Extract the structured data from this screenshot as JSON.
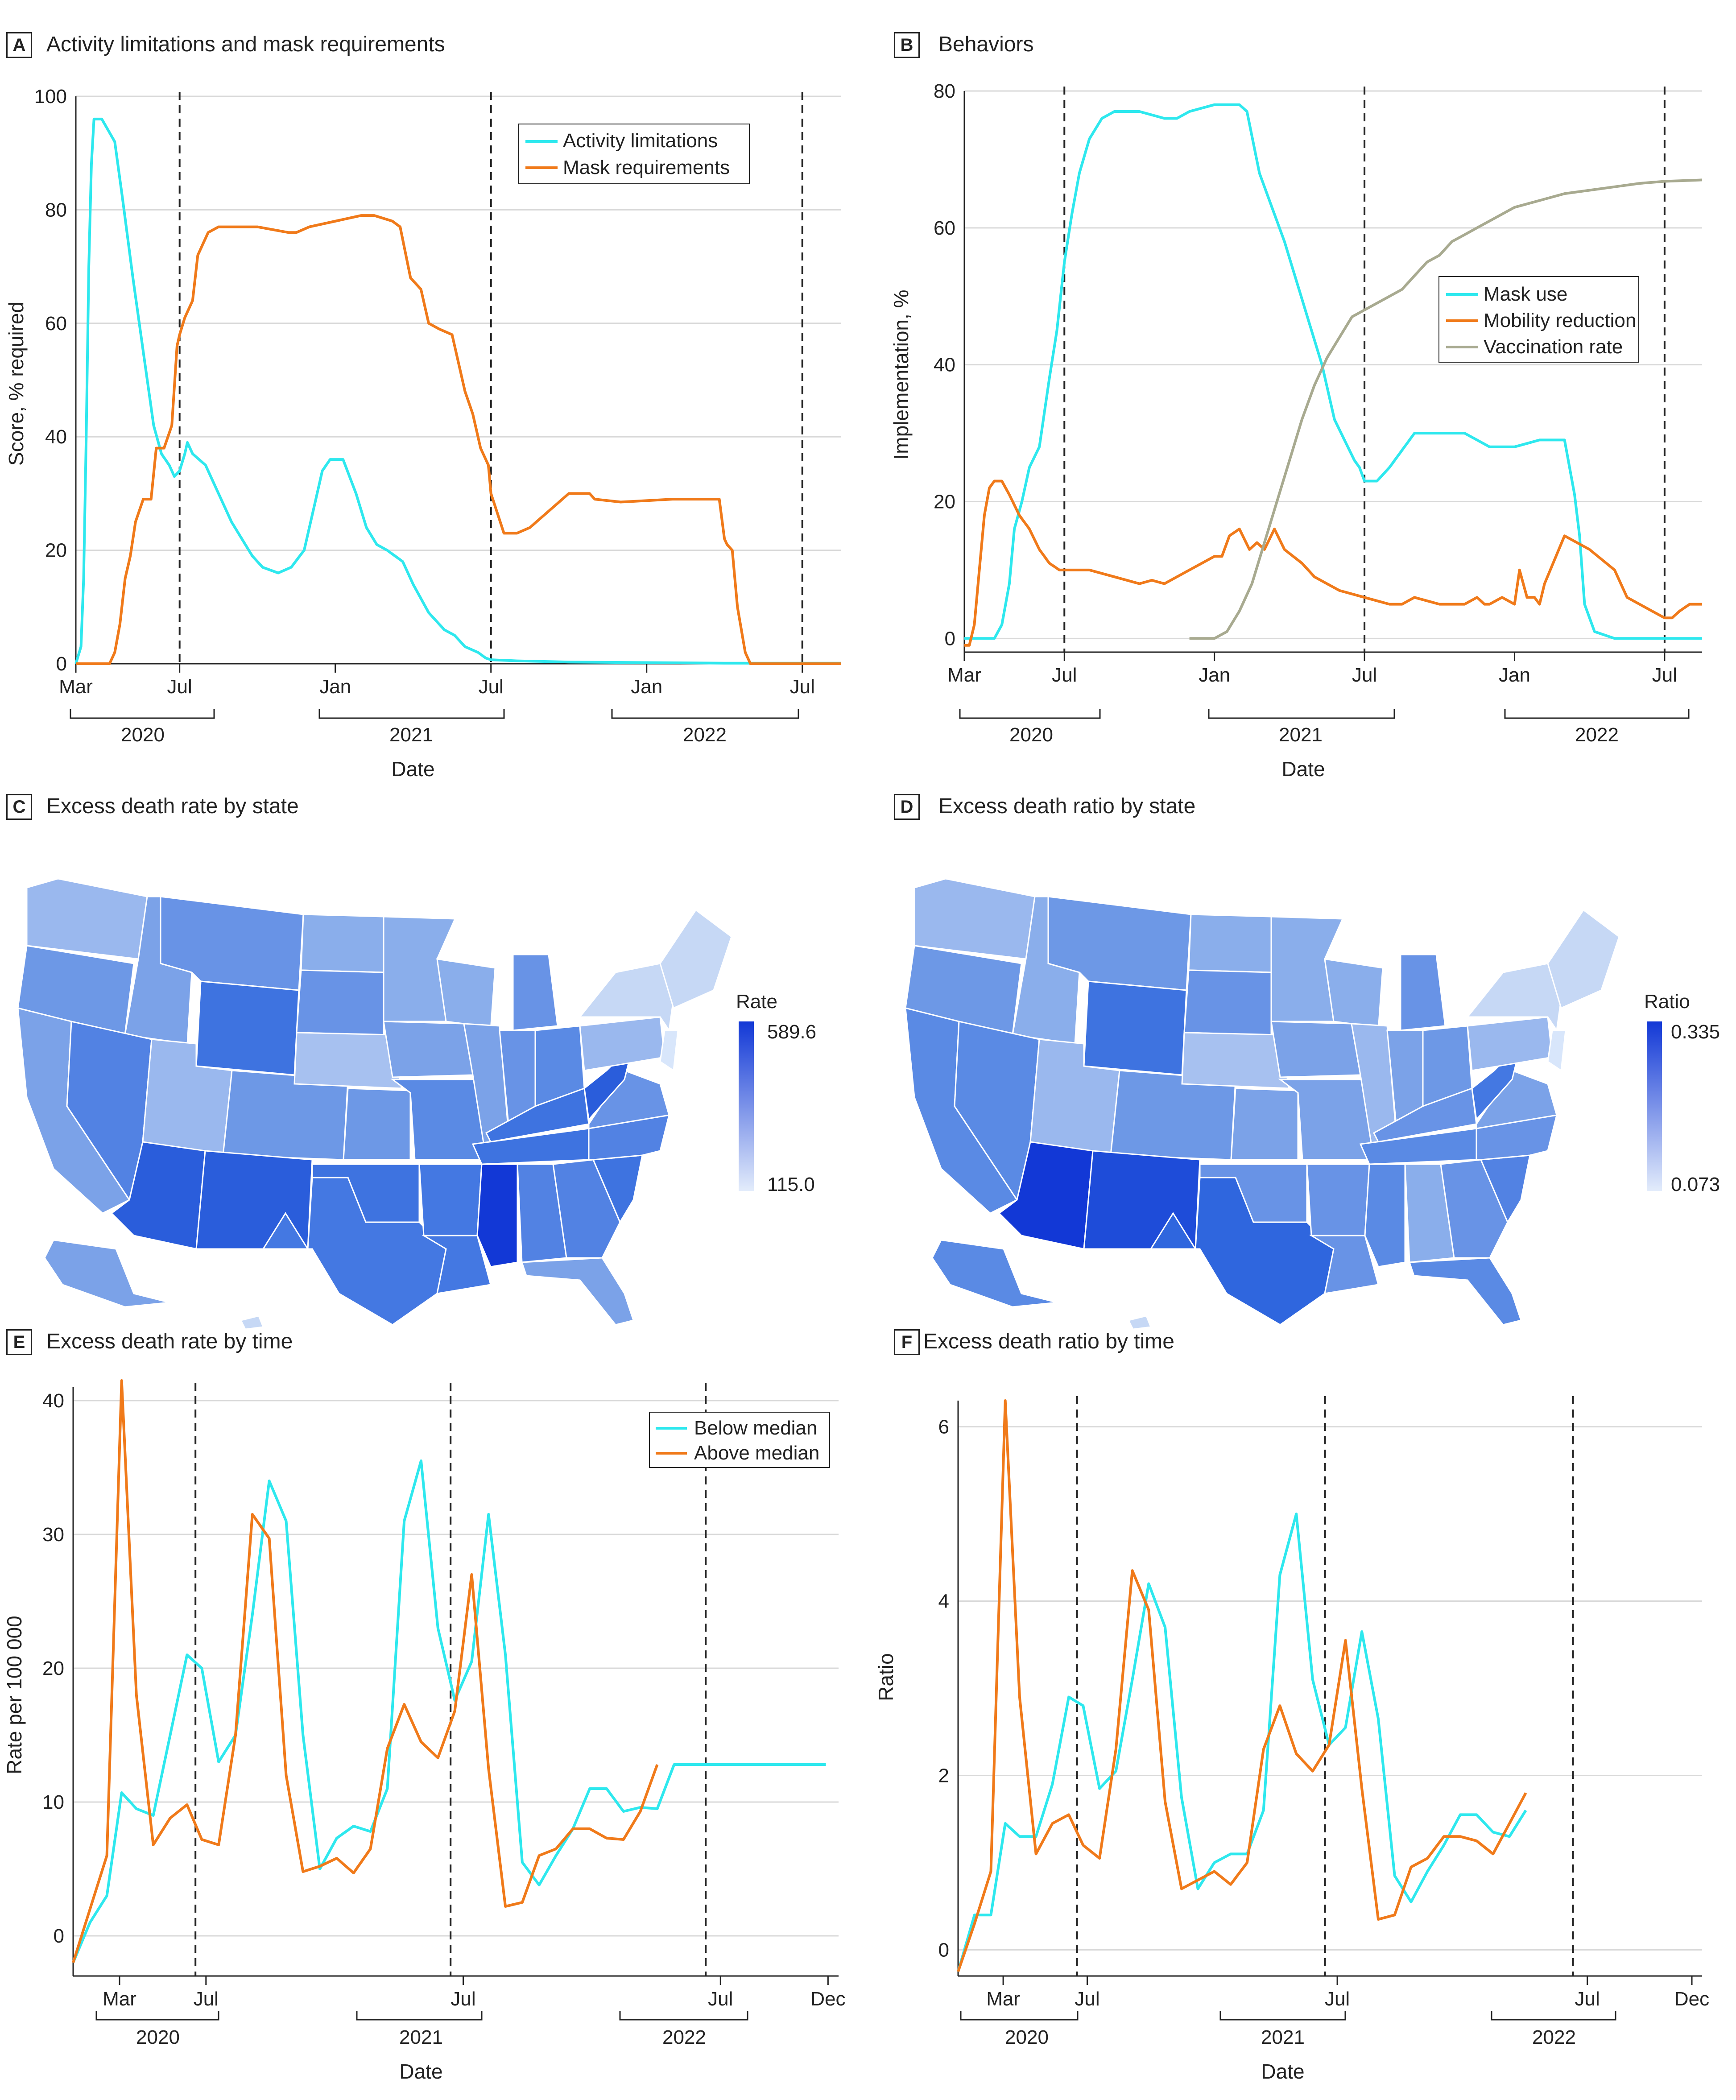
{
  "colors": {
    "cyan": "#2ee8ee",
    "orange": "#f07a1a",
    "vacc": "#a8aa90",
    "grid": "#d9d9d9",
    "axis": "#222222",
    "map_low": "#d8e6fb",
    "map_high": "#1238d6"
  },
  "panelA": {
    "label": "A",
    "title": "Activity limitations and mask requirements",
    "xlabel": "Date",
    "ylabel": "Score, % required",
    "years": [
      "2020",
      "2021",
      "2022"
    ],
    "legend": [
      "Activity limitations",
      "Mask requirements"
    ]
  },
  "panelB": {
    "label": "B",
    "title": "Behaviors",
    "xlabel": "Date",
    "ylabel": "Implementation, %",
    "years": [
      "2020",
      "2021",
      "2022"
    ],
    "legend": [
      "Mask use",
      "Mobility reduction",
      "Vaccination rate"
    ]
  },
  "panelC": {
    "label": "C",
    "title": "Excess death rate by state",
    "legend_title": "Rate",
    "max_label": "589.6",
    "min_label": "115.0"
  },
  "panelD": {
    "label": "D",
    "title": "Excess death ratio by state",
    "legend_title": "Ratio",
    "max_label": "0.335",
    "min_label": "0.073"
  },
  "panelE": {
    "label": "E",
    "title": "Excess death rate by time",
    "xlabel": "Date",
    "ylabel": "Rate per 100 000",
    "years": [
      "2020",
      "2021",
      "2022"
    ],
    "legend": [
      "Below median",
      "Above median"
    ]
  },
  "panelF": {
    "label": "F",
    "title": "Excess death ratio by time",
    "xlabel": "Date",
    "ylabel": "Ratio",
    "years": [
      "2020",
      "2021",
      "2022"
    ]
  },
  "chart_data": [
    {
      "id": "A",
      "type": "line",
      "title": "Activity limitations and mask requirements",
      "xlabel": "Date",
      "ylabel": "Score, % required",
      "xlim": [
        0,
        29.5
      ],
      "ylim": [
        0,
        100
      ],
      "yticks": [
        0,
        20,
        40,
        60,
        80,
        100
      ],
      "xticks": [
        {
          "x": 0,
          "label": "Mar"
        },
        {
          "x": 4,
          "label": "Jul"
        },
        {
          "x": 10,
          "label": "Jan"
        },
        {
          "x": 16,
          "label": "Jul"
        },
        {
          "x": 22,
          "label": "Jan"
        },
        {
          "x": 28,
          "label": "Jul"
        }
      ],
      "vlines": [
        4,
        16,
        28
      ],
      "series": [
        {
          "name": "Activity limitations",
          "x": [
            0.0,
            0.2,
            0.3,
            0.4,
            0.5,
            0.6,
            0.7,
            0.9,
            1.0,
            1.5,
            1.8,
            2.2,
            2.6,
            3.0,
            3.3,
            3.6,
            3.8,
            4.0,
            4.2,
            4.3,
            4.5,
            5.0,
            5.5,
            6.0,
            6.4,
            6.8,
            7.2,
            7.8,
            8.3,
            8.8,
            9.2,
            9.5,
            9.8,
            10.3,
            10.8,
            11.2,
            11.6,
            12.0,
            12.6,
            13.0,
            13.6,
            14.2,
            14.6,
            15.0,
            15.5,
            15.8,
            16.0,
            17.0,
            19.0,
            22.0,
            25.0,
            29.5
          ],
          "y": [
            0,
            3,
            15,
            40,
            70,
            88,
            96,
            96,
            96,
            92,
            82,
            68,
            55,
            42,
            37,
            35,
            33,
            34,
            37,
            39,
            37,
            35,
            30,
            25,
            22,
            19,
            17,
            16,
            17,
            20,
            28,
            34,
            36,
            36,
            30,
            24,
            21,
            20,
            18,
            14,
            9,
            6,
            5,
            3,
            2,
            1,
            0.7,
            0.5,
            0.3,
            0.2,
            0.1,
            0.1
          ]
        },
        {
          "name": "Mask requirements",
          "x": [
            0.0,
            1.3,
            1.5,
            1.7,
            1.9,
            2.1,
            2.3,
            2.6,
            2.9,
            3.1,
            3.4,
            3.7,
            3.9,
            4.0,
            4.2,
            4.5,
            4.7,
            4.9,
            5.1,
            5.5,
            6.5,
            7.0,
            8.2,
            8.5,
            9.0,
            11.0,
            11.5,
            12.2,
            12.5,
            12.9,
            13.3,
            13.6,
            14.0,
            14.5,
            15.0,
            15.3,
            15.6,
            15.9,
            16.0,
            16.5,
            17.0,
            17.5,
            18.0,
            19.0,
            19.8,
            20.0,
            21.0,
            23.0,
            24.0,
            24.8,
            25.0,
            25.1,
            25.3,
            25.5,
            25.8,
            26.0,
            29.5
          ],
          "y": [
            0,
            0,
            2,
            7,
            15,
            19,
            25,
            29,
            29,
            38,
            38,
            42,
            56,
            58,
            61,
            64,
            72,
            74,
            76,
            77,
            77,
            77,
            76,
            76,
            77,
            79,
            79,
            78,
            77,
            68,
            66,
            60,
            59,
            58,
            48,
            44,
            38,
            35,
            30,
            23,
            23,
            24,
            26,
            30,
            30,
            29,
            28.5,
            29,
            29,
            29,
            22,
            21,
            20,
            10,
            2,
            0,
            0
          ]
        }
      ]
    },
    {
      "id": "B",
      "type": "line",
      "title": "Behaviors",
      "xlabel": "Date",
      "ylabel": "Implementation, %",
      "xlim": [
        0,
        29.5
      ],
      "ylim": [
        -2,
        80
      ],
      "yticks": [
        0,
        20,
        40,
        60,
        80
      ],
      "xticks": [
        {
          "x": 0,
          "label": "Mar"
        },
        {
          "x": 4,
          "label": "Jul"
        },
        {
          "x": 10,
          "label": "Jan"
        },
        {
          "x": 16,
          "label": "Jul"
        },
        {
          "x": 22,
          "label": "Jan"
        },
        {
          "x": 28,
          "label": "Jul"
        }
      ],
      "vlines": [
        4,
        16,
        28
      ],
      "series": [
        {
          "name": "Mask use",
          "x": [
            0.0,
            1.2,
            1.5,
            1.8,
            2.0,
            2.3,
            2.6,
            3.0,
            3.4,
            3.7,
            4.0,
            4.3,
            4.6,
            5.0,
            5.5,
            6.0,
            7.0,
            8.0,
            8.5,
            9.0,
            10.0,
            11.0,
            11.3,
            11.8,
            12.3,
            12.8,
            13.3,
            13.8,
            14.3,
            14.8,
            15.2,
            15.6,
            15.8,
            16.0,
            16.5,
            17.0,
            17.4,
            18.0,
            20.0,
            20.5,
            21.0,
            22.0,
            23.0,
            24.0,
            24.4,
            24.6,
            24.8,
            25.2,
            26.0,
            29.5
          ],
          "y": [
            0,
            0,
            2,
            8,
            16,
            20,
            25,
            28,
            38,
            45,
            55,
            62,
            68,
            73,
            76,
            77,
            77,
            76,
            76,
            77,
            78,
            78,
            77,
            68,
            63,
            58,
            52,
            46,
            40,
            32,
            29,
            26,
            25,
            23,
            23,
            25,
            27,
            30,
            30,
            29,
            28,
            28,
            29,
            29,
            21,
            15,
            5,
            1,
            0,
            0
          ]
        },
        {
          "name": "Mobility reduction",
          "x": [
            0.0,
            0.2,
            0.4,
            0.6,
            0.8,
            1.0,
            1.2,
            1.5,
            1.8,
            2.2,
            2.6,
            3.0,
            3.4,
            3.8,
            4.0,
            4.5,
            5.0,
            6.0,
            7.0,
            7.5,
            8.0,
            9.0,
            9.5,
            10.0,
            10.3,
            10.6,
            11.0,
            11.4,
            11.7,
            12.0,
            12.4,
            12.8,
            13.5,
            14.0,
            14.5,
            15.0,
            16.0,
            17.0,
            17.5,
            18.0,
            19.0,
            20.0,
            20.5,
            20.8,
            21.0,
            21.5,
            22.0,
            22.2,
            22.5,
            22.8,
            23.0,
            23.2,
            24.0,
            25.0,
            26.0,
            26.5,
            27.0,
            27.5,
            28.0,
            28.3,
            28.6,
            29.0,
            29.5
          ],
          "y": [
            -1,
            -1,
            2,
            10,
            18,
            22,
            23,
            23,
            21,
            18,
            16,
            13,
            11,
            10,
            10,
            10,
            10,
            9,
            8,
            8.5,
            8,
            10,
            11,
            12,
            12,
            15,
            16,
            13,
            14,
            13,
            16,
            13,
            11,
            9,
            8,
            7,
            6,
            5,
            5,
            6,
            5,
            5,
            6,
            5,
            5,
            6,
            5,
            10,
            6,
            6,
            5,
            8,
            15,
            13,
            10,
            6,
            5,
            4,
            3,
            3,
            4,
            5,
            5
          ]
        },
        {
          "name": "Vaccination rate",
          "x": [
            9.0,
            9.5,
            10.0,
            10.5,
            11.0,
            11.5,
            12.0,
            12.5,
            13.0,
            13.5,
            14.0,
            14.5,
            15.0,
            15.5,
            16.0,
            16.5,
            17.0,
            17.5,
            18.0,
            18.5,
            19.0,
            19.5,
            20.0,
            20.5,
            21.0,
            21.5,
            22.0,
            23.0,
            24.0,
            25.0,
            26.0,
            27.0,
            28.0,
            29.5
          ],
          "y": [
            0,
            0,
            0,
            1,
            4,
            8,
            14,
            20,
            26,
            32,
            37,
            41,
            44,
            47,
            48,
            49,
            50,
            51,
            53,
            55,
            56,
            58,
            59,
            60,
            61,
            62,
            63,
            64,
            65,
            65.5,
            66,
            66.5,
            66.8,
            67
          ]
        }
      ]
    },
    {
      "id": "E",
      "type": "line",
      "title": "Excess death rate by time",
      "xlabel": "Date",
      "ylabel": "Rate per 100 000",
      "xlim": [
        -0.8,
        35.5
      ],
      "ylim": [
        -3,
        41
      ],
      "yticks": [
        0,
        10,
        20,
        30,
        40
      ],
      "xticks": [
        {
          "x": 1.4,
          "label": "Mar"
        },
        {
          "x": 5.5,
          "label": "Jul"
        },
        {
          "x": 17.7,
          "label": "Jul"
        },
        {
          "x": 29.9,
          "label": "Jul"
        },
        {
          "x": 35,
          "label": "Dec"
        }
      ],
      "vlines": [
        5,
        17.1,
        29.2
      ],
      "series": [
        {
          "name": "Below median",
          "x": [
            -0.8,
            0,
            0.8,
            1.5,
            2.2,
            3.0,
            3.8,
            4.6,
            5.3,
            6.1,
            6.9,
            7.7,
            8.5,
            9.3,
            10.1,
            10.9,
            11.7,
            12.5,
            13.3,
            14.1,
            14.9,
            15.7,
            16.5,
            17.3,
            18.1,
            18.9,
            19.7,
            20.5,
            21.3,
            22.1,
            22.9,
            23.7,
            24.5,
            25.3,
            26.1,
            26.9,
            27.7,
            28.5,
            29.3,
            30.1,
            30.9,
            31.7,
            32.5,
            33.3,
            34.1,
            34.9
          ],
          "y": [
            -2,
            1,
            3,
            10.7,
            9.5,
            9,
            15,
            21,
            20,
            13,
            15,
            24,
            34,
            31,
            15,
            5,
            7.3,
            8.2,
            7.8,
            11,
            31,
            35.5,
            23,
            17.6,
            20.5,
            31.5,
            21,
            5.5,
            3.8,
            6,
            8,
            11,
            11,
            9.3,
            9.6,
            9.5,
            12.8,
            12.8,
            12.8,
            12.8,
            12.8,
            12.8,
            12.8,
            12.8,
            12.8,
            12.8
          ]
        },
        {
          "name": "Above median",
          "x": [
            -0.8,
            0,
            0.8,
            1.5,
            2.2,
            3.0,
            3.8,
            4.6,
            5.3,
            6.1,
            6.9,
            7.7,
            8.5,
            9.3,
            10.1,
            10.9,
            11.7,
            12.5,
            13.3,
            14.1,
            14.9,
            15.7,
            16.5,
            17.3,
            18.1,
            18.9,
            19.7,
            20.5,
            21.3,
            22.1,
            22.9,
            23.7,
            24.5,
            25.3,
            26.1,
            26.9
          ],
          "y": [
            -2,
            2,
            6,
            41.5,
            18,
            6.8,
            8.8,
            9.8,
            7.2,
            6.8,
            15,
            31.5,
            29.7,
            12,
            4.8,
            5.2,
            5.8,
            4.7,
            6.5,
            14,
            17.3,
            14.5,
            13.3,
            16.8,
            27,
            12.5,
            2.2,
            2.5,
            6,
            6.5,
            8,
            8,
            7.3,
            7.2,
            9.3,
            12.8
          ]
        }
      ]
    },
    {
      "id": "F",
      "type": "line",
      "title": "Excess death ratio by time",
      "xlabel": "Date",
      "ylabel": "Ratio",
      "xlim": [
        -0.8,
        35.5
      ],
      "ylim": [
        -0.3,
        6.3
      ],
      "yticks": [
        0,
        2,
        4,
        6
      ],
      "xticks": [
        {
          "x": 1.4,
          "label": "Mar"
        },
        {
          "x": 5.5,
          "label": "Jul"
        },
        {
          "x": 17.7,
          "label": "Jul"
        },
        {
          "x": 29.9,
          "label": "Jul"
        },
        {
          "x": 35,
          "label": "Dec"
        }
      ],
      "vlines": [
        5,
        17.1,
        29.2
      ],
      "series": [
        {
          "name": "Below median",
          "x": [
            -0.8,
            0,
            0.8,
            1.5,
            2.2,
            3.0,
            3.8,
            4.6,
            5.3,
            6.1,
            6.9,
            7.7,
            8.5,
            9.3,
            10.1,
            10.9,
            11.7,
            12.5,
            13.3,
            14.1,
            14.9,
            15.7,
            16.5,
            17.3,
            18.1,
            18.9,
            19.7,
            20.5,
            21.3,
            22.1,
            22.9,
            23.7,
            24.5,
            25.3,
            26.1,
            26.9
          ],
          "y": [
            -0.25,
            0.4,
            0.4,
            1.45,
            1.3,
            1.3,
            1.9,
            2.9,
            2.8,
            1.85,
            2.05,
            3.1,
            4.2,
            3.7,
            1.75,
            0.7,
            1.0,
            1.1,
            1.1,
            1.6,
            4.3,
            5.0,
            3.1,
            2.35,
            2.55,
            3.65,
            2.65,
            0.85,
            0.55,
            0.9,
            1.2,
            1.55,
            1.55,
            1.35,
            1.3,
            1.6
          ]
        },
        {
          "name": "Above median",
          "x": [
            -0.8,
            0,
            0.8,
            1.5,
            2.2,
            3.0,
            3.8,
            4.6,
            5.3,
            6.1,
            6.9,
            7.7,
            8.5,
            9.3,
            10.1,
            10.9,
            11.7,
            12.5,
            13.3,
            14.1,
            14.9,
            15.7,
            16.5,
            17.3,
            18.1,
            18.9,
            19.7,
            20.5,
            21.3,
            22.1,
            22.9,
            23.7,
            24.5,
            25.3,
            26.1,
            26.9
          ],
          "y": [
            -0.25,
            0.3,
            0.9,
            6.3,
            2.9,
            1.1,
            1.45,
            1.55,
            1.2,
            1.05,
            2.3,
            4.35,
            3.9,
            1.7,
            0.7,
            0.8,
            0.9,
            0.75,
            1.0,
            2.3,
            2.8,
            2.25,
            2.05,
            2.35,
            3.55,
            1.85,
            0.35,
            0.4,
            0.95,
            1.05,
            1.3,
            1.3,
            1.25,
            1.1,
            1.45,
            1.8
          ]
        }
      ]
    }
  ]
}
